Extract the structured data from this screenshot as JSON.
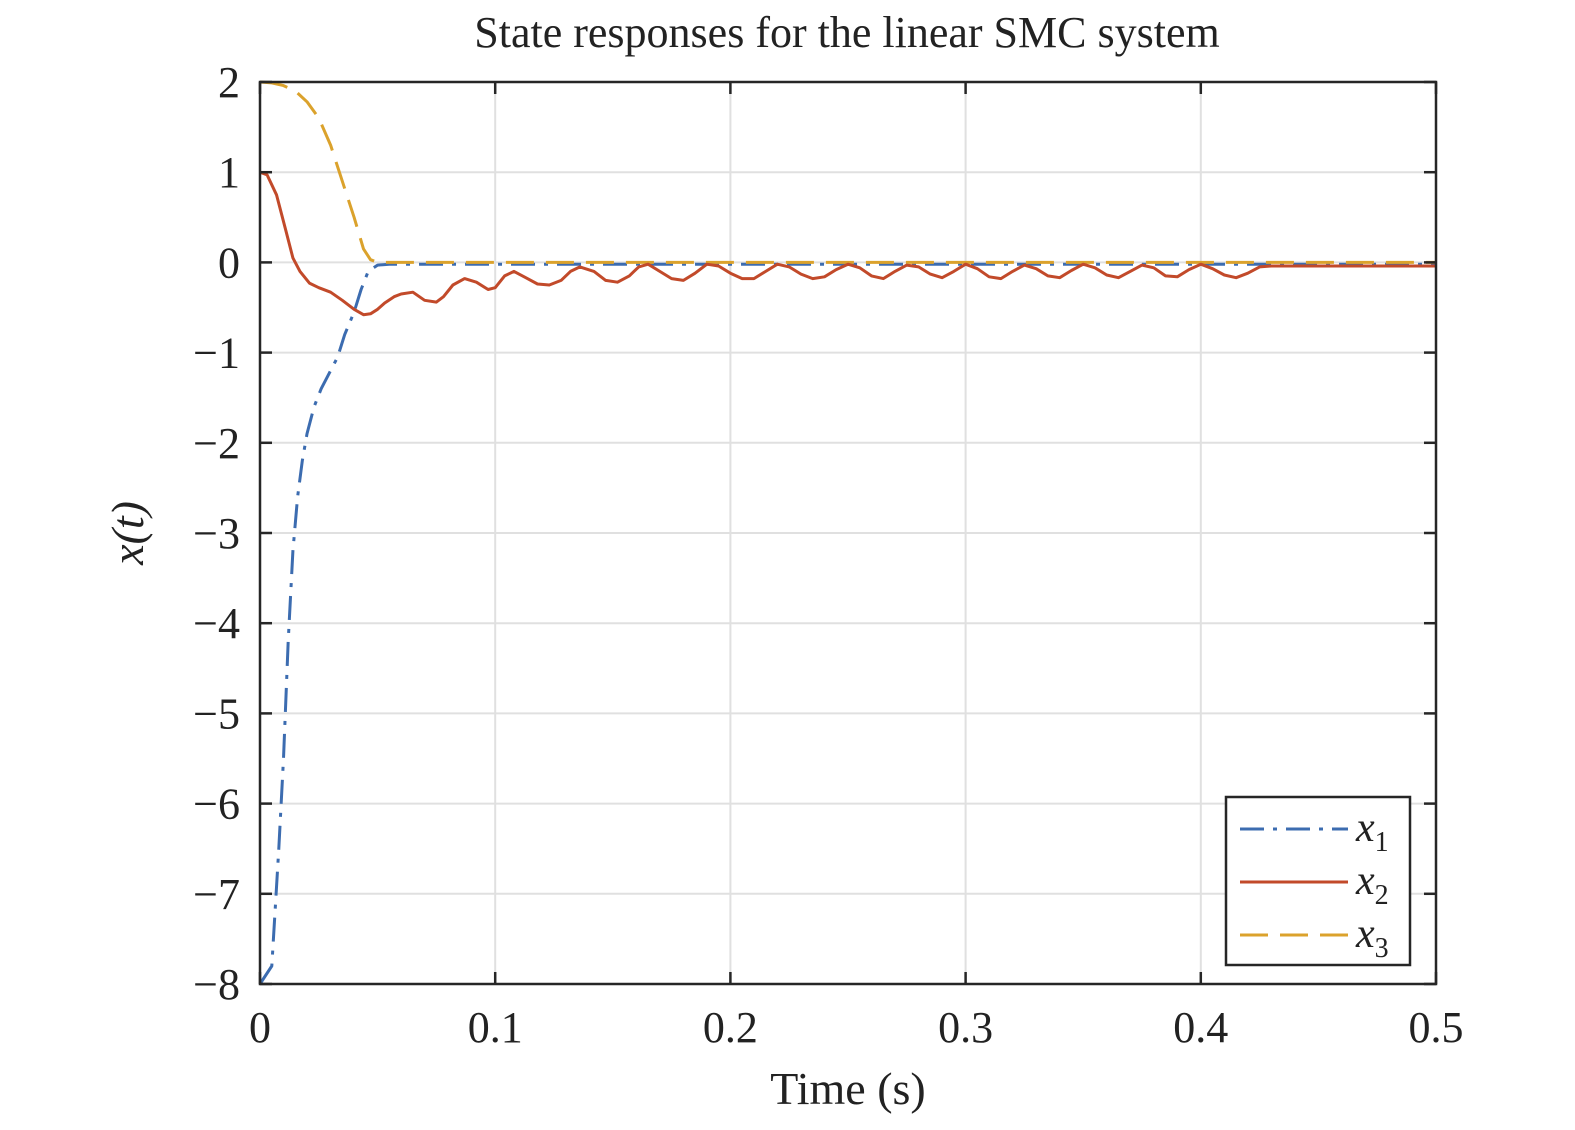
{
  "chart_data": {
    "type": "line",
    "title": "State responses for the linear SMC system",
    "xlabel": "Time (s)",
    "ylabel": "x(t)",
    "xlim": [
      0,
      0.5
    ],
    "ylim": [
      -8,
      2
    ],
    "grid": true,
    "legend_placement": "bottom-right",
    "x_ticks": [
      0,
      0.1,
      0.2,
      0.3,
      0.4,
      0.5
    ],
    "x_tick_labels": [
      "0",
      "0.1",
      "0.2",
      "0.3",
      "0.4",
      "0.5"
    ],
    "y_ticks": [
      2,
      1,
      0,
      -1,
      -2,
      -3,
      -4,
      -5,
      -6,
      -7,
      -8
    ],
    "y_tick_labels": [
      "2",
      "1",
      "0",
      "−1",
      "−2",
      "−3",
      "−4",
      "−5",
      "−6",
      "−7",
      "−8"
    ],
    "series": [
      {
        "name": "x",
        "subscript": "1",
        "color": "#3c6cb0",
        "style": "dash-dot",
        "points": [
          [
            0,
            -8
          ],
          [
            0.005,
            -7.8
          ],
          [
            0.008,
            -6.5
          ],
          [
            0.01,
            -5.5
          ],
          [
            0.012,
            -4.2
          ],
          [
            0.014,
            -3.2
          ],
          [
            0.016,
            -2.6
          ],
          [
            0.018,
            -2.2
          ],
          [
            0.02,
            -1.9
          ],
          [
            0.023,
            -1.6
          ],
          [
            0.026,
            -1.4
          ],
          [
            0.03,
            -1.2
          ],
          [
            0.033,
            -1.05
          ],
          [
            0.036,
            -0.8
          ],
          [
            0.04,
            -0.55
          ],
          [
            0.043,
            -0.3
          ],
          [
            0.046,
            -0.1
          ],
          [
            0.05,
            -0.03
          ],
          [
            0.055,
            -0.02
          ],
          [
            0.5,
            -0.02
          ]
        ]
      },
      {
        "name": "x",
        "subscript": "2",
        "color": "#c24a2a",
        "style": "solid",
        "points": [
          [
            0,
            1
          ],
          [
            0.003,
            0.97
          ],
          [
            0.007,
            0.75
          ],
          [
            0.011,
            0.35
          ],
          [
            0.014,
            0.05
          ],
          [
            0.017,
            -0.1
          ],
          [
            0.021,
            -0.23
          ],
          [
            0.025,
            -0.28
          ],
          [
            0.03,
            -0.33
          ],
          [
            0.035,
            -0.42
          ],
          [
            0.04,
            -0.52
          ],
          [
            0.044,
            -0.58
          ],
          [
            0.047,
            -0.57
          ],
          [
            0.05,
            -0.52
          ],
          [
            0.053,
            -0.45
          ],
          [
            0.057,
            -0.38
          ],
          [
            0.06,
            -0.35
          ],
          [
            0.065,
            -0.33
          ],
          [
            0.07,
            -0.42
          ],
          [
            0.075,
            -0.44
          ],
          [
            0.078,
            -0.38
          ],
          [
            0.082,
            -0.25
          ],
          [
            0.087,
            -0.18
          ],
          [
            0.092,
            -0.22
          ],
          [
            0.097,
            -0.3
          ],
          [
            0.1,
            -0.28
          ],
          [
            0.104,
            -0.15
          ],
          [
            0.108,
            -0.1
          ],
          [
            0.113,
            -0.17
          ],
          [
            0.118,
            -0.24
          ],
          [
            0.123,
            -0.25
          ],
          [
            0.128,
            -0.2
          ],
          [
            0.132,
            -0.1
          ],
          [
            0.136,
            -0.05
          ],
          [
            0.142,
            -0.1
          ],
          [
            0.147,
            -0.2
          ],
          [
            0.152,
            -0.22
          ],
          [
            0.157,
            -0.15
          ],
          [
            0.161,
            -0.05
          ],
          [
            0.165,
            -0.02
          ],
          [
            0.17,
            -0.1
          ],
          [
            0.175,
            -0.18
          ],
          [
            0.18,
            -0.2
          ],
          [
            0.185,
            -0.12
          ],
          [
            0.19,
            -0.02
          ],
          [
            0.195,
            -0.04
          ],
          [
            0.2,
            -0.12
          ],
          [
            0.205,
            -0.18
          ],
          [
            0.21,
            -0.18
          ],
          [
            0.215,
            -0.1
          ],
          [
            0.22,
            -0.02
          ],
          [
            0.225,
            -0.05
          ],
          [
            0.23,
            -0.13
          ],
          [
            0.235,
            -0.18
          ],
          [
            0.24,
            -0.16
          ],
          [
            0.245,
            -0.08
          ],
          [
            0.25,
            -0.02
          ],
          [
            0.255,
            -0.06
          ],
          [
            0.26,
            -0.15
          ],
          [
            0.265,
            -0.18
          ],
          [
            0.27,
            -0.1
          ],
          [
            0.275,
            -0.03
          ],
          [
            0.28,
            -0.05
          ],
          [
            0.285,
            -0.13
          ],
          [
            0.29,
            -0.17
          ],
          [
            0.295,
            -0.1
          ],
          [
            0.3,
            -0.02
          ],
          [
            0.305,
            -0.07
          ],
          [
            0.31,
            -0.16
          ],
          [
            0.315,
            -0.18
          ],
          [
            0.32,
            -0.1
          ],
          [
            0.325,
            -0.03
          ],
          [
            0.33,
            -0.07
          ],
          [
            0.335,
            -0.15
          ],
          [
            0.34,
            -0.17
          ],
          [
            0.345,
            -0.09
          ],
          [
            0.35,
            -0.02
          ],
          [
            0.355,
            -0.06
          ],
          [
            0.36,
            -0.14
          ],
          [
            0.365,
            -0.17
          ],
          [
            0.37,
            -0.1
          ],
          [
            0.375,
            -0.03
          ],
          [
            0.38,
            -0.06
          ],
          [
            0.385,
            -0.15
          ],
          [
            0.39,
            -0.16
          ],
          [
            0.395,
            -0.08
          ],
          [
            0.4,
            -0.02
          ],
          [
            0.405,
            -0.07
          ],
          [
            0.41,
            -0.14
          ],
          [
            0.415,
            -0.17
          ],
          [
            0.42,
            -0.12
          ],
          [
            0.425,
            -0.05
          ],
          [
            0.43,
            -0.04
          ],
          [
            0.5,
            -0.04
          ]
        ]
      },
      {
        "name": "x",
        "subscript": "3",
        "color": "#dba22c",
        "style": "dashed",
        "points": [
          [
            0,
            2
          ],
          [
            0.005,
            1.99
          ],
          [
            0.01,
            1.96
          ],
          [
            0.015,
            1.9
          ],
          [
            0.02,
            1.78
          ],
          [
            0.025,
            1.6
          ],
          [
            0.03,
            1.3
          ],
          [
            0.035,
            0.9
          ],
          [
            0.04,
            0.5
          ],
          [
            0.044,
            0.15
          ],
          [
            0.047,
            0.03
          ],
          [
            0.05,
            0
          ],
          [
            0.06,
            0
          ],
          [
            0.5,
            0
          ]
        ]
      }
    ]
  }
}
